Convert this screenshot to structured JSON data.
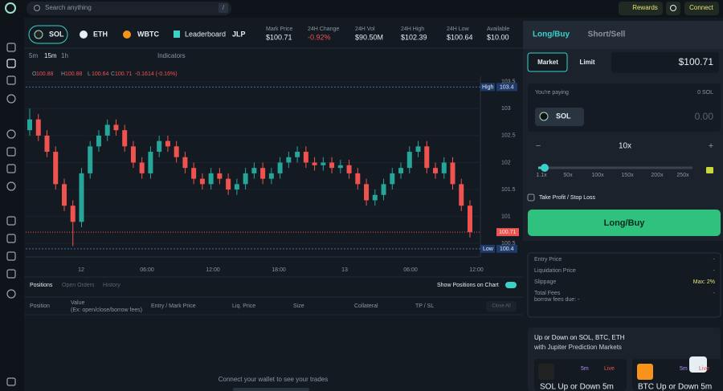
{
  "search": {
    "placeholder": "Search anything",
    "shortcut": "/"
  },
  "top_buttons": [
    "Rewards",
    "Connect"
  ],
  "assets": [
    "SOL",
    "ETH",
    "WBTC"
  ],
  "leaderboard": "Leaderboard",
  "pool": "JLP",
  "stats": [
    {
      "label": "Mark Price",
      "value": "$100.71"
    },
    {
      "label": "24H Change",
      "value": "-0.92%"
    },
    {
      "label": "24H Vol",
      "value": "$90.50M"
    },
    {
      "label": "24H High",
      "value": "$102.39"
    },
    {
      "label": "24H Low",
      "value": "$100.64"
    },
    {
      "label": "Available",
      "value": "$10.00"
    }
  ],
  "timeframes": [
    "5m",
    "15m",
    "1h"
  ],
  "indicators": "Indicators",
  "ohlc": [
    {
      "label": "O",
      "value": "100.88"
    },
    {
      "label": "H",
      "value": "100.88"
    },
    {
      "label": "L",
      "value": "100.64"
    },
    {
      "label": "C",
      "value": "100.71"
    }
  ],
  "ohlc_change": "-0.1614 (-0.16%)",
  "chart_data": {
    "type": "candlestick",
    "x_labels": [
      "12",
      "06:00",
      "12:00",
      "18:00",
      "13",
      "06:00",
      "12:00"
    ],
    "open": [
      102.6,
      102.8,
      102.5,
      102.2,
      101.6,
      101.2,
      100.9,
      101.8,
      102.3,
      102.5,
      102.7,
      102.6,
      102.3,
      102.0,
      101.8,
      102.2,
      102.4,
      102.3,
      102.1,
      101.9,
      101.7,
      101.6,
      101.8,
      101.7,
      101.5,
      101.6,
      101.8,
      101.9,
      101.7,
      101.8,
      102.0,
      102.1,
      102.2,
      102.0,
      101.95,
      102.0,
      101.9,
      101.95,
      101.8,
      101.6,
      101.3,
      101.4,
      101.6,
      101.8,
      101.9,
      102.2,
      102.3,
      101.9,
      101.8,
      102.0,
      101.6,
      101.2
    ],
    "high": [
      103.0,
      102.9,
      102.6,
      102.3,
      101.7,
      101.3,
      101.9,
      102.4,
      102.6,
      102.8,
      102.8,
      102.7,
      102.4,
      102.1,
      102.3,
      102.5,
      102.5,
      102.4,
      102.2,
      102.0,
      101.8,
      101.9,
      101.9,
      101.8,
      101.7,
      101.9,
      102.0,
      102.0,
      101.9,
      102.1,
      102.2,
      102.3,
      102.3,
      102.1,
      102.1,
      102.1,
      102.05,
      102.05,
      101.9,
      101.7,
      101.5,
      101.7,
      101.9,
      102.0,
      102.3,
      102.4,
      102.4,
      102.0,
      102.1,
      102.1,
      101.7,
      101.3
    ],
    "low": [
      102.5,
      102.4,
      102.1,
      101.5,
      101.1,
      100.45,
      100.8,
      101.7,
      102.2,
      102.4,
      102.5,
      102.2,
      101.9,
      101.7,
      101.7,
      102.1,
      102.2,
      102.0,
      101.8,
      101.6,
      101.5,
      101.5,
      101.6,
      101.4,
      101.4,
      101.5,
      101.7,
      101.6,
      101.6,
      101.7,
      101.9,
      102.0,
      101.9,
      101.85,
      101.85,
      101.8,
      101.8,
      101.7,
      101.5,
      101.2,
      101.2,
      101.3,
      101.5,
      101.7,
      101.8,
      102.1,
      101.8,
      101.7,
      101.7,
      101.5,
      101.1,
      100.61
    ],
    "close": [
      102.8,
      102.5,
      102.2,
      101.6,
      101.2,
      100.9,
      101.8,
      102.3,
      102.5,
      102.7,
      102.6,
      102.3,
      102.0,
      101.8,
      102.2,
      102.4,
      102.3,
      102.1,
      101.9,
      101.7,
      101.6,
      101.8,
      101.7,
      101.5,
      101.6,
      101.8,
      101.9,
      101.7,
      101.8,
      102.0,
      102.1,
      102.2,
      102.0,
      101.95,
      102.0,
      101.9,
      101.95,
      101.8,
      101.6,
      101.3,
      101.4,
      101.6,
      101.8,
      101.9,
      102.2,
      102.3,
      101.9,
      101.8,
      102.0,
      101.6,
      101.2,
      100.71
    ],
    "up_color": "#26a69a",
    "down_color": "#ef5350",
    "ylim": [
      100.25,
      103.6
    ],
    "yticks": [
      100.5,
      101,
      101.5,
      102,
      102.5,
      103,
      103.5
    ],
    "high_marker": {
      "label": "High",
      "value": 103.4
    },
    "low_marker": {
      "label": "Low",
      "value": 100.4
    },
    "last_price": 100.71
  },
  "positions": {
    "tabs": [
      "Positions",
      "Open Orders",
      "History"
    ],
    "show_on_chart": "Show Positions on Chart",
    "columns": [
      "Position",
      "Value",
      "Entry / Mark Price",
      "Liq. Price",
      "Size",
      "Collateral",
      "TP / SL"
    ],
    "value_note": "(Ex: open/close/borrow fees)",
    "close_all": "Close All",
    "empty": "Connect your wallet to see your trades"
  },
  "order": {
    "tabs": [
      "Long/Buy",
      "Short/Sell"
    ],
    "types": [
      "Market",
      "Limit"
    ],
    "price": "$100.71",
    "paying": "You're paying",
    "balance": "0 SOL",
    "token": "SOL",
    "amount": "0.00",
    "leverage": "10x",
    "minus": "−",
    "plus": "+",
    "lev_marks": [
      "1.1x",
      "50x",
      "100x",
      "150x",
      "200x",
      "250x"
    ],
    "tpsl": "Take Profit / Stop Loss",
    "submit": "Long/Buy",
    "info": [
      {
        "label": "Entry Price",
        "value": "-"
      },
      {
        "label": "Liquidation Price",
        "value": "-"
      },
      {
        "label": "Slippage",
        "value": "Max: 2%"
      },
      {
        "label": "Total Fees",
        "value": "-"
      }
    ],
    "borrow": "borrow fees due: -"
  },
  "promo": {
    "title": "Up or Down on SOL, BTC, ETH",
    "subtitle": "with Jupiter Prediction Markets",
    "cards": [
      {
        "interval": "5m",
        "status": "Live",
        "title": "SOL Up or Down 5m"
      },
      {
        "interval": "5m",
        "status": "Live",
        "title": "BTC Up or Down 5m"
      }
    ]
  }
}
